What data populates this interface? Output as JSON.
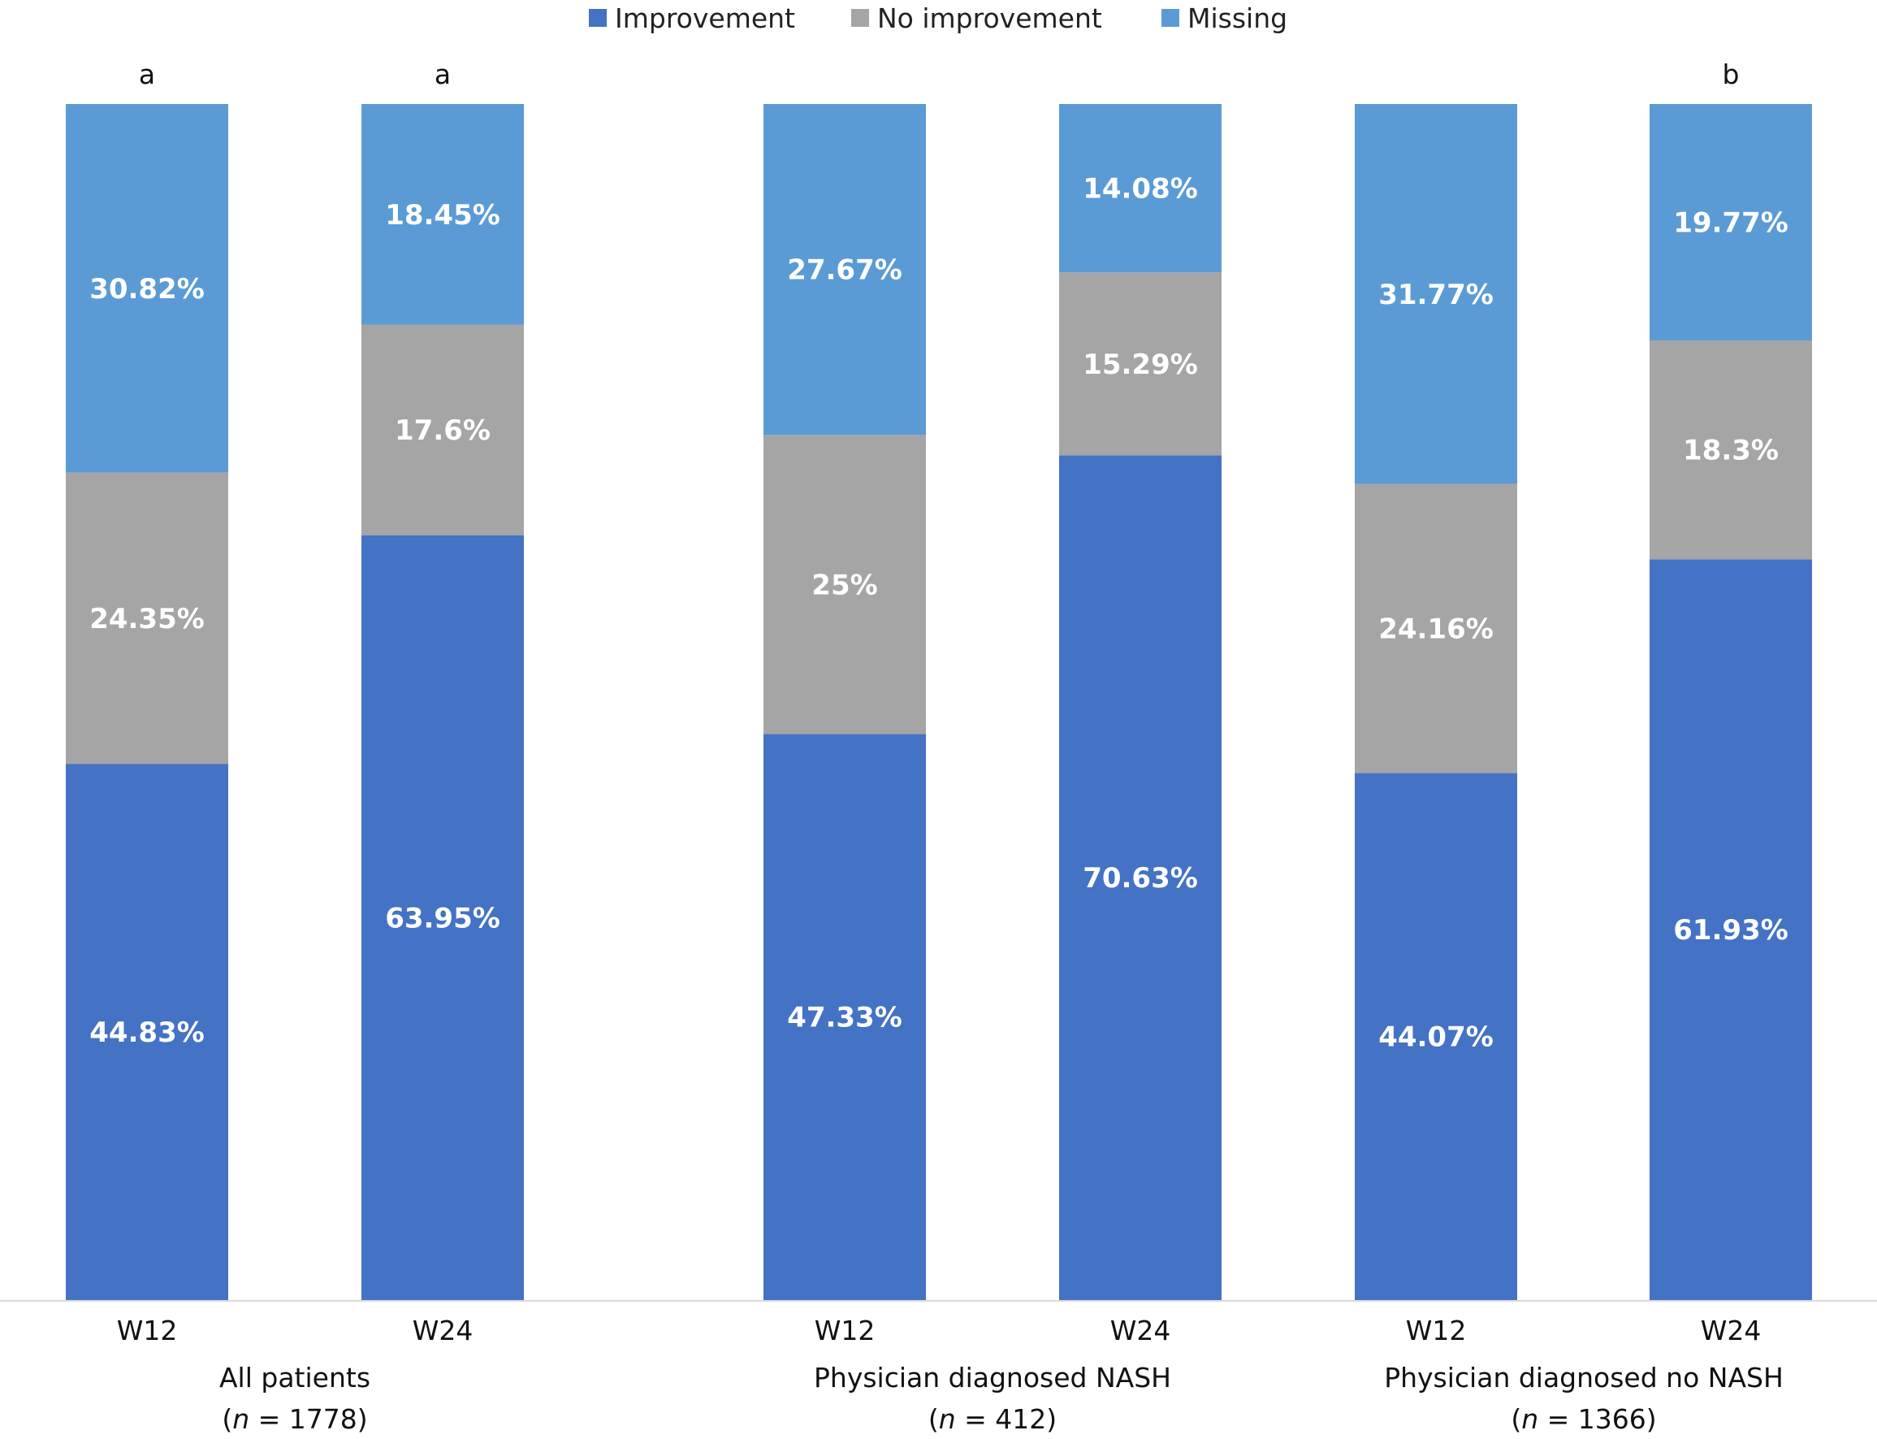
{
  "chart_data": {
    "type": "bar",
    "stacked": true,
    "categories": [
      "W12",
      "W24",
      "W12",
      "W24",
      "W12",
      "W24"
    ],
    "groups": [
      {
        "label": "Physician diagnosed NASH",
        "n_prefix": "n",
        "n_text": " = 412)",
        "bars": [
          2,
          3
        ]
      },
      {
        "label": "All patients",
        "n_prefix": "n",
        "n_text": " = 1778)",
        "bars": [
          0,
          1
        ]
      },
      {
        "label": "Physician diagnosed no NASH",
        "n_prefix": "n",
        "n_text": " = 1366)",
        "bars": [
          4,
          5
        ]
      }
    ],
    "series": [
      {
        "name": "Improvement",
        "color": "#4472C4",
        "values": [
          44.83,
          63.95,
          47.33,
          70.63,
          44.07,
          61.93
        ],
        "labels": [
          "44.83%",
          "63.95%",
          "47.33%",
          "70.63%",
          "44.07%",
          "61.93%"
        ]
      },
      {
        "name": "No improvement",
        "color": "#A5A5A5",
        "values": [
          24.35,
          17.6,
          25,
          15.29,
          24.16,
          18.3
        ],
        "labels": [
          "24.35%",
          "17.6%",
          "25%",
          "15.29%",
          "24.16%",
          "18.3%"
        ]
      },
      {
        "name": "Missing",
        "color": "#5B9BD5",
        "values": [
          30.82,
          18.45,
          27.67,
          14.08,
          31.77,
          19.77
        ],
        "labels": [
          "30.82%",
          "18.45%",
          "27.67%",
          "14.08%",
          "31.77%",
          "19.77%"
        ]
      }
    ],
    "significance": [
      "a",
      "a",
      "",
      "",
      "",
      "b"
    ],
    "ylim": [
      0,
      100
    ],
    "legend_position": "top-center",
    "grid": false
  }
}
